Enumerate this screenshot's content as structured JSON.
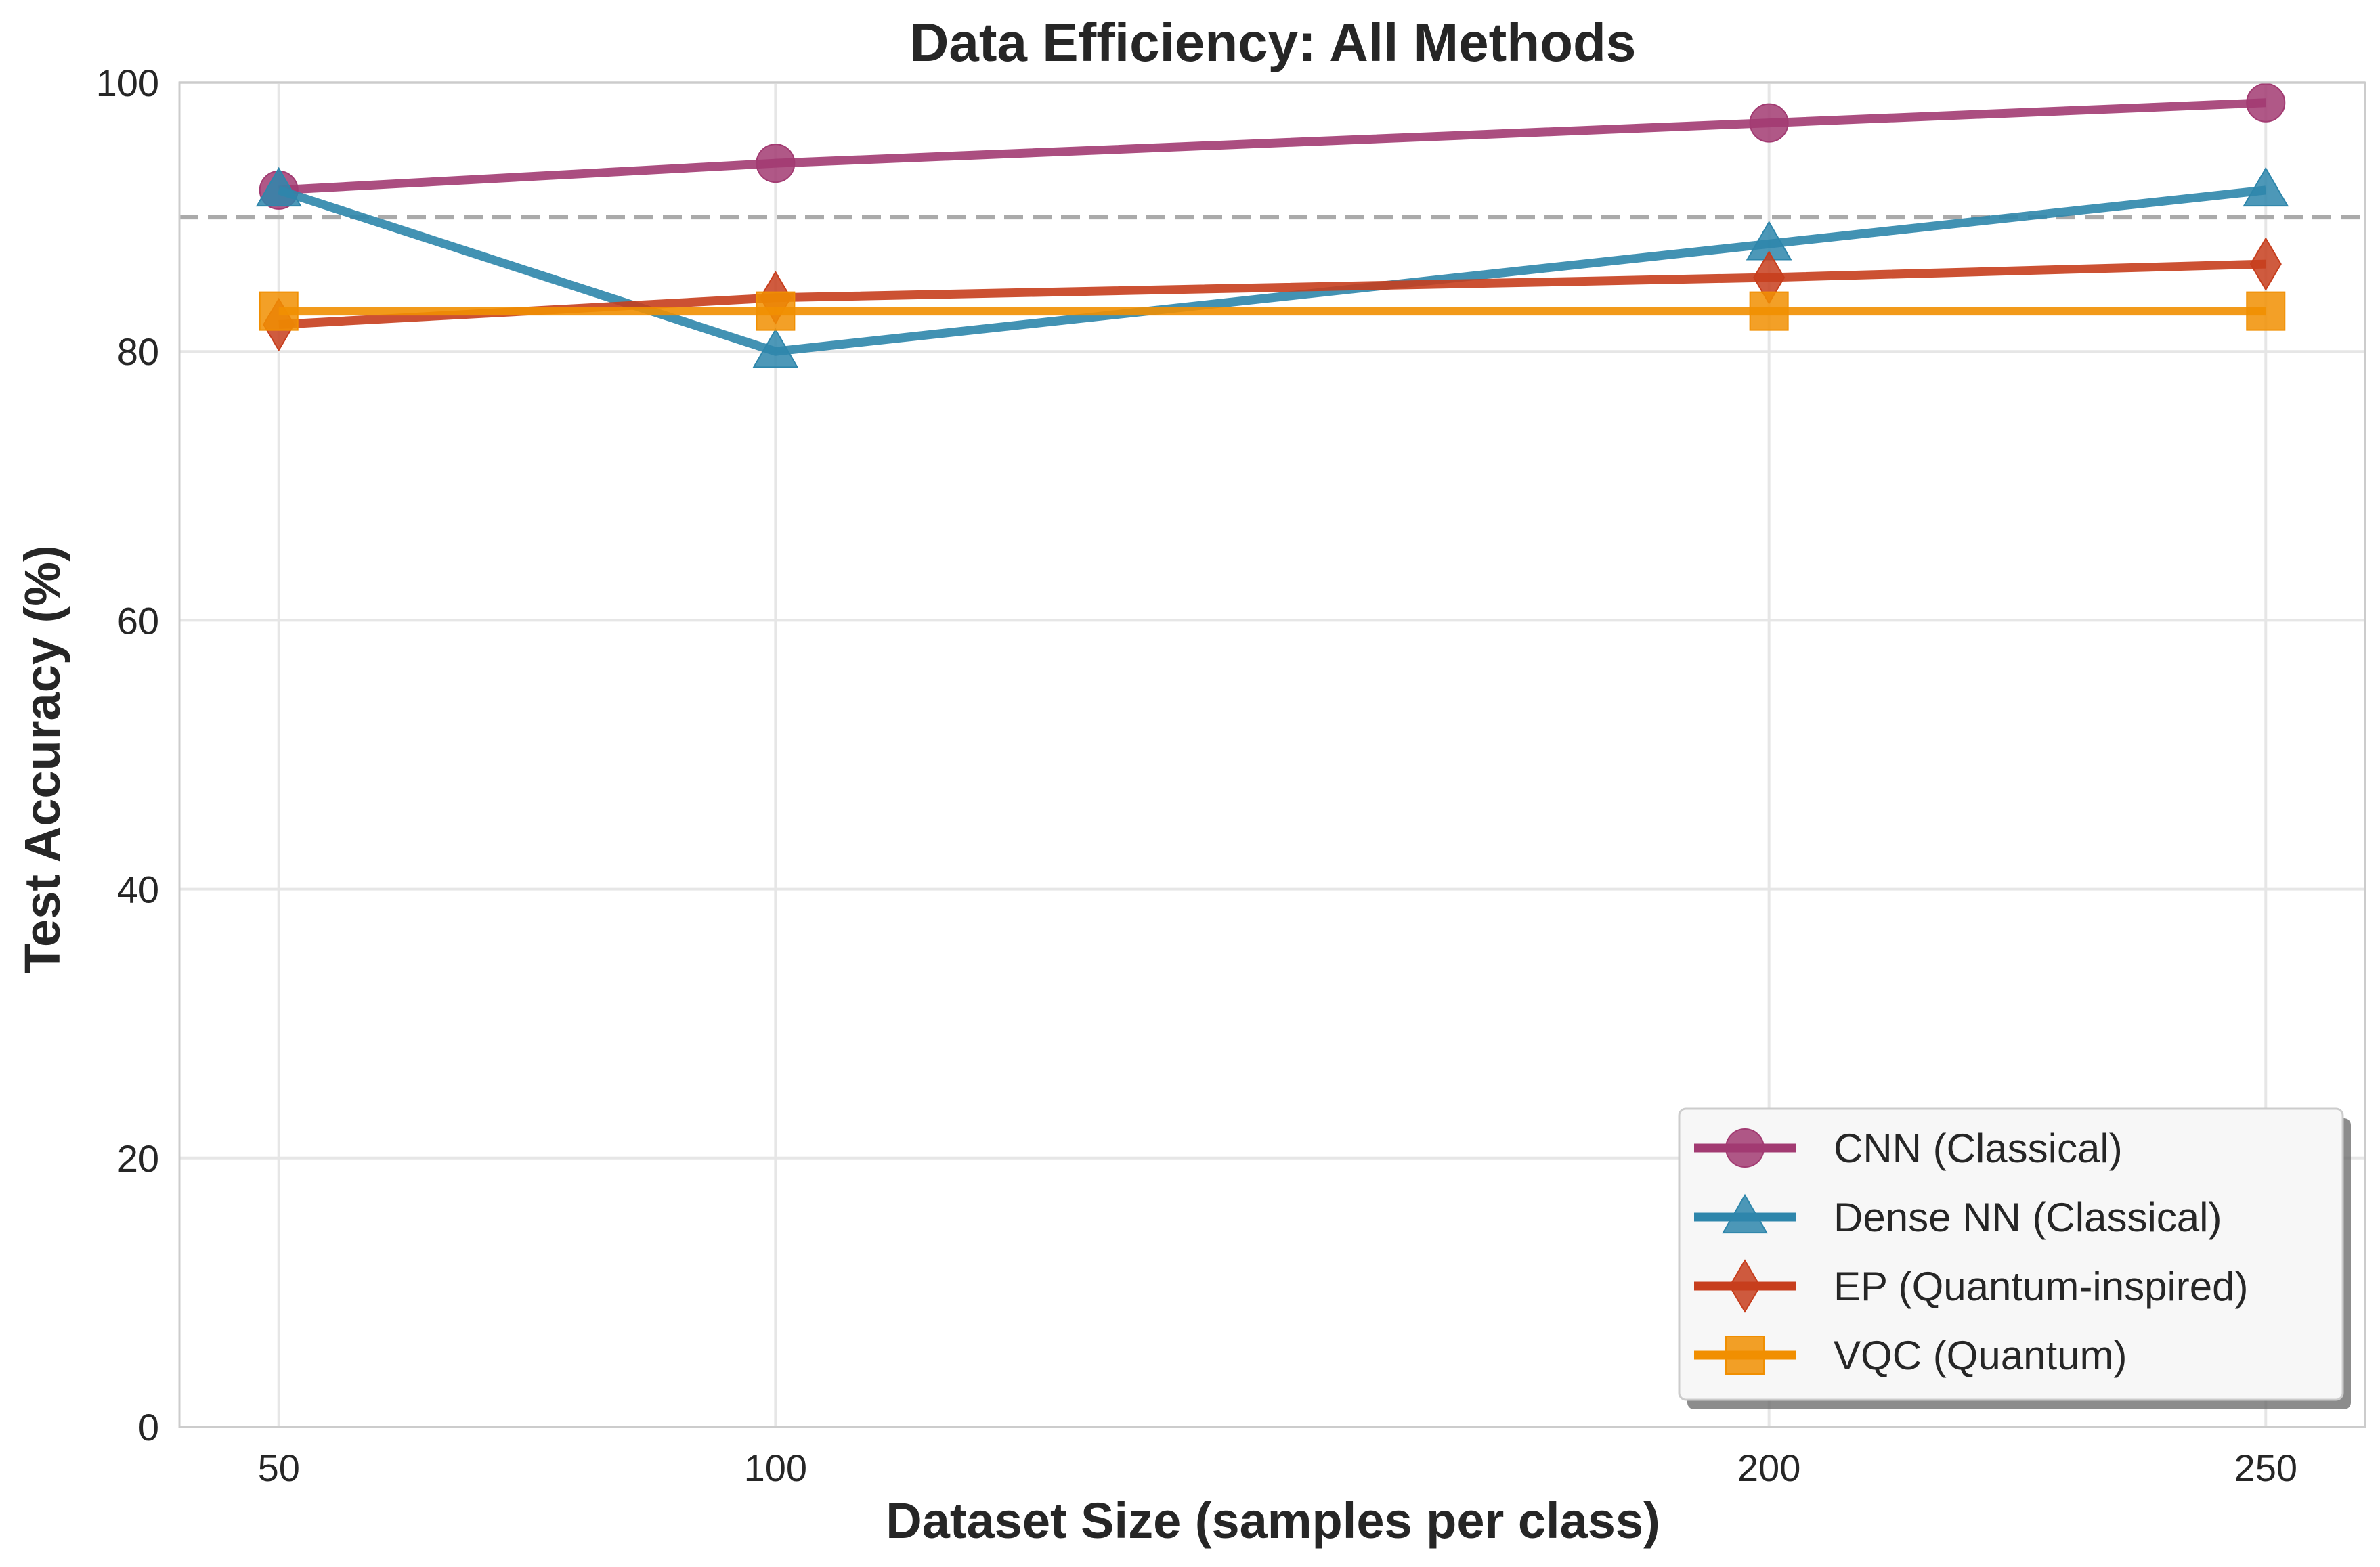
{
  "chart_data": {
    "type": "line",
    "title": "Data Efficiency: All Methods",
    "xlabel": "Dataset Size (samples per class)",
    "ylabel": "Test Accuracy (%)",
    "x": [
      50,
      100,
      200,
      250
    ],
    "xlim": [
      40,
      260
    ],
    "ylim": [
      0,
      100
    ],
    "xticks": [
      "50",
      "100",
      "200",
      "250"
    ],
    "yticks": [
      "0",
      "20",
      "40",
      "60",
      "80",
      "100"
    ],
    "grid": true,
    "reference_line": {
      "y": 90,
      "style": "dashed",
      "color": "#aaaaaa"
    },
    "legend_position": "lower-right",
    "series": [
      {
        "name": "CNN (Classical)",
        "values": [
          92,
          94,
          97,
          98.5
        ],
        "color": "#A23B72",
        "marker": "circle"
      },
      {
        "name": "Dense NN (Classical)",
        "values": [
          92,
          80,
          88,
          92
        ],
        "color": "#2E86AB",
        "marker": "triangle"
      },
      {
        "name": "EP (Quantum-inspired)",
        "values": [
          82,
          84,
          85.5,
          86.5
        ],
        "color": "#C73E1D",
        "marker": "diamond"
      },
      {
        "name": "VQC (Quantum)",
        "values": [
          83,
          83,
          83,
          83
        ],
        "color": "#F18F01",
        "marker": "square"
      }
    ]
  }
}
